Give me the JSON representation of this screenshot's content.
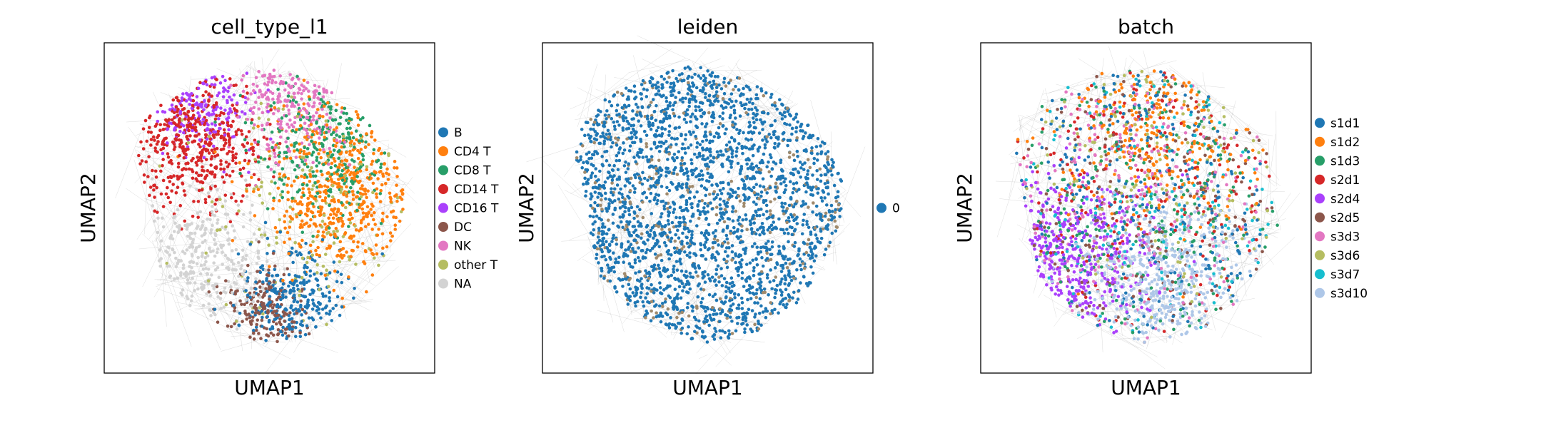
{
  "chart_data": [
    {
      "type": "scatter",
      "title": "cell_type_l1",
      "xlabel": "UMAP1",
      "ylabel": "UMAP2",
      "grid": false,
      "ticks": false,
      "legend_placement": "right",
      "legend": [
        {
          "name": "B",
          "color": "#1f77b4"
        },
        {
          "name": "CD4 T",
          "color": "#ff7f0e"
        },
        {
          "name": "CD8 T",
          "color": "#279e68"
        },
        {
          "name": "CD14 T",
          "color": "#d62728"
        },
        {
          "name": "CD16 T",
          "color": "#aa40fc"
        },
        {
          "name": "DC",
          "color": "#8c564b"
        },
        {
          "name": "NK",
          "color": "#e377c2"
        },
        {
          "name": "other T",
          "color": "#b5bd61"
        },
        {
          "name": "NA",
          "color": "#d3d3d3"
        }
      ]
    },
    {
      "type": "scatter",
      "title": "leiden",
      "xlabel": "UMAP1",
      "ylabel": "UMAP2",
      "grid": false,
      "ticks": false,
      "legend_placement": "right",
      "legend": [
        {
          "name": "0",
          "color": "#1f77b4"
        }
      ]
    },
    {
      "type": "scatter",
      "title": "batch",
      "xlabel": "UMAP1",
      "ylabel": "UMAP2",
      "grid": false,
      "ticks": false,
      "legend_placement": "right",
      "legend": [
        {
          "name": "s1d1",
          "color": "#1f77b4"
        },
        {
          "name": "s1d2",
          "color": "#ff7f0e"
        },
        {
          "name": "s1d3",
          "color": "#279e68"
        },
        {
          "name": "s2d1",
          "color": "#d62728"
        },
        {
          "name": "s2d4",
          "color": "#aa40fc"
        },
        {
          "name": "s2d5",
          "color": "#8c564b"
        },
        {
          "name": "s3d3",
          "color": "#e377c2"
        },
        {
          "name": "s3d6",
          "color": "#b5bd61"
        },
        {
          "name": "s3d7",
          "color": "#17becf"
        },
        {
          "name": "s3d10",
          "color": "#aec7e8"
        }
      ]
    }
  ]
}
